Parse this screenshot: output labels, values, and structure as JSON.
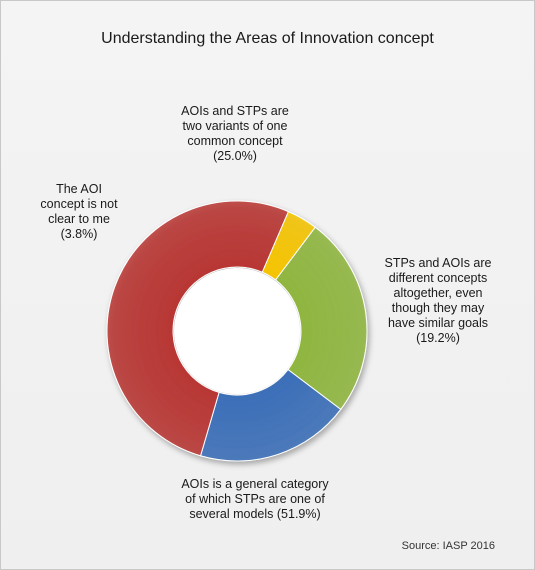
{
  "title": "Understanding  the Areas of Innovation  concept",
  "source": "Source: IASP 2016",
  "chart_data": {
    "type": "pie",
    "title": "Understanding  the Areas of Innovation  concept",
    "slices": [
      {
        "label": "AOIs and STPs are\ntwo variants  of one\ncommon concept\n(25.0%)",
        "value": 25.0,
        "color": "#8fb63f"
      },
      {
        "label": "STPs and AOIs are\ndifferent  concepts\naltogether,  even\nthough they may\nhave  similar goals\n(19.2%)",
        "value": 19.2,
        "color": "#3a6eb8"
      },
      {
        "label": "AOIs is a general category\nof which STPs are one of\nseveral models  (51.9%)",
        "value": 51.9,
        "color": "#b83532"
      },
      {
        "label": "The  AOI\nconcept is not\nclear to me\n(3.8%)",
        "value": 3.8,
        "color": "#f5c400"
      }
    ]
  }
}
